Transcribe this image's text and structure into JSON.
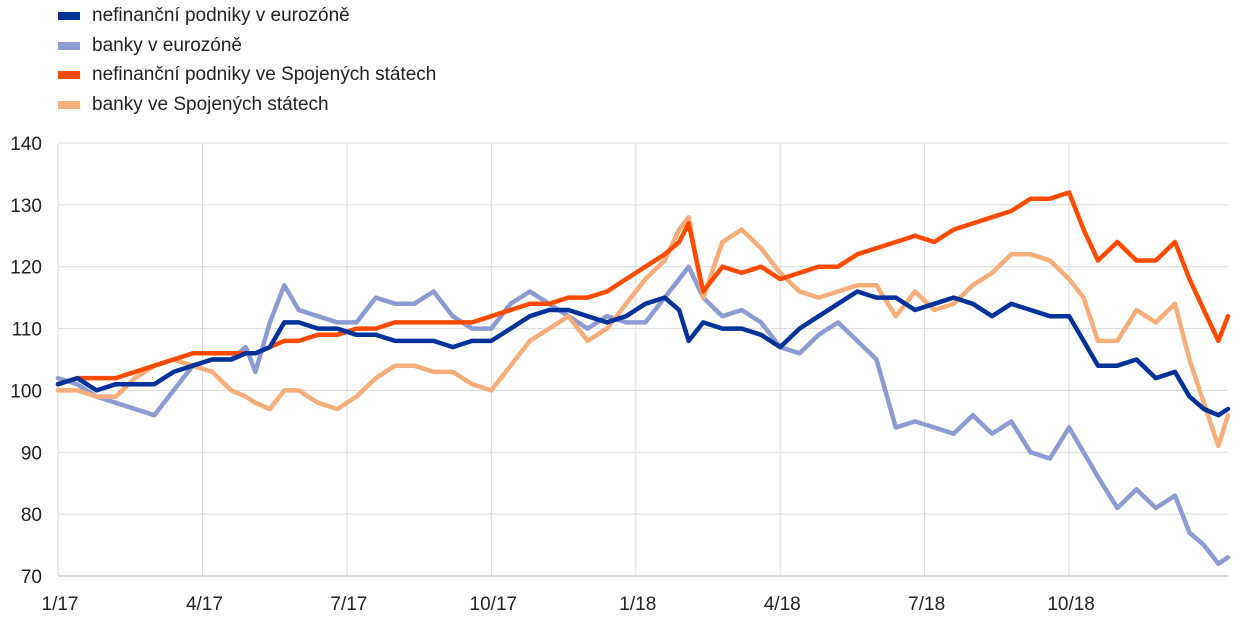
{
  "chart_data": {
    "type": "line",
    "title": "",
    "xlabel": "",
    "ylabel": "",
    "ylim": [
      70,
      140
    ],
    "yticks": [
      70,
      80,
      90,
      100,
      110,
      120,
      130,
      140
    ],
    "xticks": [
      {
        "label": "1/17",
        "t": 0
      },
      {
        "label": "4/17",
        "t": 3
      },
      {
        "label": "7/17",
        "t": 6
      },
      {
        "label": "10/17",
        "t": 9
      },
      {
        "label": "1/18",
        "t": 12
      },
      {
        "label": "4/18",
        "t": 15
      },
      {
        "label": "7/18",
        "t": 18
      },
      {
        "label": "10/18",
        "t": 21
      }
    ],
    "xlim": [
      0,
      24.3
    ],
    "x_unit": "months since 1/17",
    "grid": "vertical",
    "legend_position": "top-left",
    "series": [
      {
        "name": "nefinanční podniky v eurozóně",
        "color": "#003299",
        "points": [
          [
            0,
            101
          ],
          [
            0.4,
            102
          ],
          [
            0.8,
            100
          ],
          [
            1.2,
            101
          ],
          [
            1.6,
            101
          ],
          [
            2.0,
            101
          ],
          [
            2.4,
            103
          ],
          [
            2.8,
            104
          ],
          [
            3.2,
            105
          ],
          [
            3.6,
            105
          ],
          [
            3.9,
            106
          ],
          [
            4.1,
            106
          ],
          [
            4.4,
            107
          ],
          [
            4.7,
            111
          ],
          [
            5.0,
            111
          ],
          [
            5.4,
            110
          ],
          [
            5.8,
            110
          ],
          [
            6.2,
            109
          ],
          [
            6.6,
            109
          ],
          [
            7.0,
            108
          ],
          [
            7.4,
            108
          ],
          [
            7.8,
            108
          ],
          [
            8.2,
            107
          ],
          [
            8.6,
            108
          ],
          [
            9.0,
            108
          ],
          [
            9.4,
            110
          ],
          [
            9.8,
            112
          ],
          [
            10.2,
            113
          ],
          [
            10.6,
            113
          ],
          [
            11.0,
            112
          ],
          [
            11.4,
            111
          ],
          [
            11.8,
            112
          ],
          [
            12.2,
            114
          ],
          [
            12.6,
            115
          ],
          [
            12.9,
            113
          ],
          [
            13.1,
            108
          ],
          [
            13.4,
            111
          ],
          [
            13.8,
            110
          ],
          [
            14.2,
            110
          ],
          [
            14.6,
            109
          ],
          [
            15.0,
            107
          ],
          [
            15.4,
            110
          ],
          [
            15.8,
            112
          ],
          [
            16.2,
            114
          ],
          [
            16.6,
            116
          ],
          [
            17.0,
            115
          ],
          [
            17.4,
            115
          ],
          [
            17.8,
            113
          ],
          [
            18.2,
            114
          ],
          [
            18.6,
            115
          ],
          [
            19.0,
            114
          ],
          [
            19.4,
            112
          ],
          [
            19.8,
            114
          ],
          [
            20.2,
            113
          ],
          [
            20.6,
            112
          ],
          [
            21.0,
            112
          ],
          [
            21.3,
            108
          ],
          [
            21.6,
            104
          ],
          [
            22.0,
            104
          ],
          [
            22.4,
            105
          ],
          [
            22.8,
            102
          ],
          [
            23.2,
            103
          ],
          [
            23.5,
            99
          ],
          [
            23.8,
            97
          ],
          [
            24.1,
            96
          ],
          [
            24.3,
            97
          ]
        ]
      },
      {
        "name": "banky v eurozóně",
        "color": "#8c9bd1",
        "points": [
          [
            0,
            102
          ],
          [
            0.4,
            101
          ],
          [
            0.8,
            99
          ],
          [
            1.2,
            98
          ],
          [
            1.6,
            97
          ],
          [
            2.0,
            96
          ],
          [
            2.4,
            100
          ],
          [
            2.8,
            104
          ],
          [
            3.2,
            105
          ],
          [
            3.6,
            105
          ],
          [
            3.9,
            107
          ],
          [
            4.1,
            103
          ],
          [
            4.4,
            111
          ],
          [
            4.7,
            117
          ],
          [
            5.0,
            113
          ],
          [
            5.4,
            112
          ],
          [
            5.8,
            111
          ],
          [
            6.2,
            111
          ],
          [
            6.6,
            115
          ],
          [
            7.0,
            114
          ],
          [
            7.4,
            114
          ],
          [
            7.8,
            116
          ],
          [
            8.2,
            112
          ],
          [
            8.6,
            110
          ],
          [
            9.0,
            110
          ],
          [
            9.4,
            114
          ],
          [
            9.8,
            116
          ],
          [
            10.2,
            114
          ],
          [
            10.6,
            112
          ],
          [
            11.0,
            110
          ],
          [
            11.4,
            112
          ],
          [
            11.8,
            111
          ],
          [
            12.2,
            111
          ],
          [
            12.6,
            115
          ],
          [
            12.9,
            118
          ],
          [
            13.1,
            120
          ],
          [
            13.4,
            115
          ],
          [
            13.8,
            112
          ],
          [
            14.2,
            113
          ],
          [
            14.6,
            111
          ],
          [
            15.0,
            107
          ],
          [
            15.4,
            106
          ],
          [
            15.8,
            109
          ],
          [
            16.2,
            111
          ],
          [
            16.6,
            108
          ],
          [
            17.0,
            105
          ],
          [
            17.4,
            94
          ],
          [
            17.8,
            95
          ],
          [
            18.2,
            94
          ],
          [
            18.6,
            93
          ],
          [
            19.0,
            96
          ],
          [
            19.4,
            93
          ],
          [
            19.8,
            95
          ],
          [
            20.2,
            90
          ],
          [
            20.6,
            89
          ],
          [
            21.0,
            94
          ],
          [
            21.3,
            90
          ],
          [
            21.6,
            86
          ],
          [
            22.0,
            81
          ],
          [
            22.4,
            84
          ],
          [
            22.8,
            81
          ],
          [
            23.2,
            83
          ],
          [
            23.5,
            77
          ],
          [
            23.8,
            75
          ],
          [
            24.1,
            72
          ],
          [
            24.3,
            73
          ]
        ]
      },
      {
        "name": "nefinanční podniky ve Spojených státech",
        "color": "#ff4b00",
        "points": [
          [
            0,
            101
          ],
          [
            0.4,
            102
          ],
          [
            0.8,
            102
          ],
          [
            1.2,
            102
          ],
          [
            1.6,
            103
          ],
          [
            2.0,
            104
          ],
          [
            2.4,
            105
          ],
          [
            2.8,
            106
          ],
          [
            3.2,
            106
          ],
          [
            3.6,
            106
          ],
          [
            3.9,
            106
          ],
          [
            4.1,
            106
          ],
          [
            4.4,
            107
          ],
          [
            4.7,
            108
          ],
          [
            5.0,
            108
          ],
          [
            5.4,
            109
          ],
          [
            5.8,
            109
          ],
          [
            6.2,
            110
          ],
          [
            6.6,
            110
          ],
          [
            7.0,
            111
          ],
          [
            7.4,
            111
          ],
          [
            7.8,
            111
          ],
          [
            8.2,
            111
          ],
          [
            8.6,
            111
          ],
          [
            9.0,
            112
          ],
          [
            9.4,
            113
          ],
          [
            9.8,
            114
          ],
          [
            10.2,
            114
          ],
          [
            10.6,
            115
          ],
          [
            11.0,
            115
          ],
          [
            11.4,
            116
          ],
          [
            11.8,
            118
          ],
          [
            12.2,
            120
          ],
          [
            12.6,
            122
          ],
          [
            12.9,
            124
          ],
          [
            13.1,
            127
          ],
          [
            13.4,
            116
          ],
          [
            13.8,
            120
          ],
          [
            14.2,
            119
          ],
          [
            14.6,
            120
          ],
          [
            15.0,
            118
          ],
          [
            15.4,
            119
          ],
          [
            15.8,
            120
          ],
          [
            16.2,
            120
          ],
          [
            16.6,
            122
          ],
          [
            17.0,
            123
          ],
          [
            17.4,
            124
          ],
          [
            17.8,
            125
          ],
          [
            18.2,
            124
          ],
          [
            18.6,
            126
          ],
          [
            19.0,
            127
          ],
          [
            19.4,
            128
          ],
          [
            19.8,
            129
          ],
          [
            20.2,
            131
          ],
          [
            20.6,
            131
          ],
          [
            21.0,
            132
          ],
          [
            21.3,
            126
          ],
          [
            21.6,
            121
          ],
          [
            22.0,
            124
          ],
          [
            22.4,
            121
          ],
          [
            22.8,
            121
          ],
          [
            23.2,
            124
          ],
          [
            23.5,
            118
          ],
          [
            23.8,
            113
          ],
          [
            24.1,
            108
          ],
          [
            24.3,
            112
          ]
        ]
      },
      {
        "name": "banky ve Spojených státech",
        "color": "#f5ad7a",
        "points": [
          [
            0,
            100
          ],
          [
            0.4,
            100
          ],
          [
            0.8,
            99
          ],
          [
            1.2,
            99
          ],
          [
            1.6,
            102
          ],
          [
            2.0,
            104
          ],
          [
            2.4,
            105
          ],
          [
            2.8,
            104
          ],
          [
            3.2,
            103
          ],
          [
            3.6,
            100
          ],
          [
            3.9,
            99
          ],
          [
            4.1,
            98
          ],
          [
            4.4,
            97
          ],
          [
            4.7,
            100
          ],
          [
            5.0,
            100
          ],
          [
            5.4,
            98
          ],
          [
            5.8,
            97
          ],
          [
            6.2,
            99
          ],
          [
            6.6,
            102
          ],
          [
            7.0,
            104
          ],
          [
            7.4,
            104
          ],
          [
            7.8,
            103
          ],
          [
            8.2,
            103
          ],
          [
            8.6,
            101
          ],
          [
            9.0,
            100
          ],
          [
            9.4,
            104
          ],
          [
            9.8,
            108
          ],
          [
            10.2,
            110
          ],
          [
            10.6,
            112
          ],
          [
            11.0,
            108
          ],
          [
            11.4,
            110
          ],
          [
            11.8,
            114
          ],
          [
            12.2,
            118
          ],
          [
            12.6,
            121
          ],
          [
            12.9,
            126
          ],
          [
            13.1,
            128
          ],
          [
            13.4,
            115
          ],
          [
            13.8,
            124
          ],
          [
            14.2,
            126
          ],
          [
            14.6,
            123
          ],
          [
            15.0,
            119
          ],
          [
            15.4,
            116
          ],
          [
            15.8,
            115
          ],
          [
            16.2,
            116
          ],
          [
            16.6,
            117
          ],
          [
            17.0,
            117
          ],
          [
            17.4,
            112
          ],
          [
            17.8,
            116
          ],
          [
            18.2,
            113
          ],
          [
            18.6,
            114
          ],
          [
            19.0,
            117
          ],
          [
            19.4,
            119
          ],
          [
            19.8,
            122
          ],
          [
            20.2,
            122
          ],
          [
            20.6,
            121
          ],
          [
            21.0,
            118
          ],
          [
            21.3,
            115
          ],
          [
            21.6,
            108
          ],
          [
            22.0,
            108
          ],
          [
            22.4,
            113
          ],
          [
            22.8,
            111
          ],
          [
            23.2,
            114
          ],
          [
            23.5,
            105
          ],
          [
            23.8,
            98
          ],
          [
            24.1,
            91
          ],
          [
            24.3,
            96
          ]
        ]
      }
    ]
  }
}
